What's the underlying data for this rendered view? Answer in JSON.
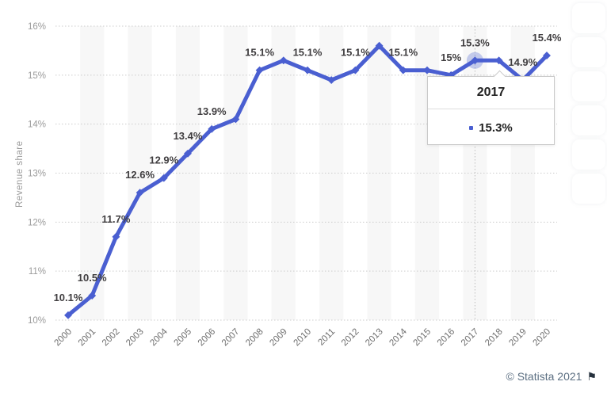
{
  "chart_data": {
    "type": "line",
    "x": [
      "2000",
      "2001",
      "2002",
      "2003",
      "2004",
      "2005",
      "2006",
      "2007",
      "2008",
      "2009",
      "2010",
      "2011",
      "2012",
      "2013",
      "2014",
      "2015",
      "2016",
      "2017",
      "2018",
      "2019",
      "2020"
    ],
    "values": [
      10.1,
      10.5,
      11.7,
      12.6,
      12.9,
      13.4,
      13.9,
      14.1,
      15.1,
      15.3,
      15.1,
      14.9,
      15.1,
      15.6,
      15.1,
      15.1,
      15.0,
      15.3,
      15.3,
      14.9,
      15.4
    ],
    "point_labels": [
      "10.1%",
      "10.5%",
      "11.7%",
      "12.6%",
      "12.9%",
      "13.4%",
      "13.9%",
      "",
      "15.1%",
      "",
      "15.1%",
      "",
      "15.1%",
      "",
      "15.1%",
      "",
      "15%",
      "15.3%",
      "",
      "14.9%",
      "15.4%"
    ],
    "ylabel": "Revenue share",
    "ylim": [
      10,
      16
    ],
    "ytick_labels": [
      "10%",
      "11%",
      "12%",
      "13%",
      "14%",
      "15%",
      "16%"
    ],
    "grid": "horizontal-dotted",
    "background_bands": "alternating-yearly",
    "legend_position": "none",
    "highlight": {
      "x": "2017",
      "value": 15.3
    }
  },
  "tooltip": {
    "title": "2017",
    "value": "15.3%"
  },
  "footer": {
    "copyright": "© Statista 2021",
    "flag_icon": "⚑"
  },
  "colors": {
    "line": "#4A5FD1",
    "halo": "rgba(75,98,210,0.30)",
    "band": "#f7f7f7",
    "grid": "#cccccc",
    "crosshair": "#bdbdbd",
    "data_label": "#403e40",
    "y_tick": "#9b9b9b",
    "x_tick": "#6e6e6e",
    "tooltip_text": "#222222",
    "copyright_text": "#5d7083"
  }
}
